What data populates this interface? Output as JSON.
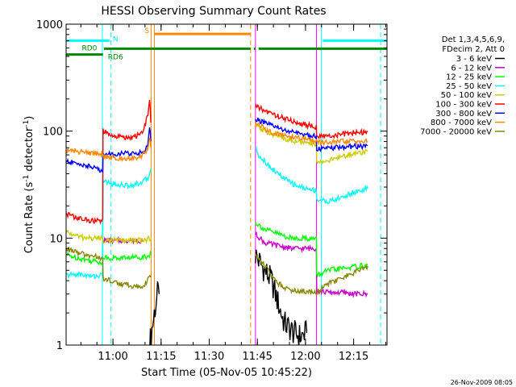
{
  "chart_data": {
    "type": "line",
    "title": "HESSI Observing Summary Count Rates",
    "xlabel": "Start Time (05-Nov-05 10:45:22)",
    "ylabel_main": "Count Rate (s",
    "ylabel_sup1": "-1",
    "ylabel_mid": " detector",
    "ylabel_sup2": "-1",
    "ylabel_end": ")",
    "ylabel": "Count Rate (s-1 detector-1)",
    "x_unit": "minutes since 10:45:22",
    "xlim": [
      0,
      100
    ],
    "ylim": [
      1,
      1000
    ],
    "yscale": "log",
    "xticks": [
      {
        "value": 14.6,
        "label": "11:00"
      },
      {
        "value": 29.6,
        "label": "11:15"
      },
      {
        "value": 44.6,
        "label": "11:30"
      },
      {
        "value": 59.6,
        "label": "11:45"
      },
      {
        "value": 74.6,
        "label": "12:00"
      },
      {
        "value": 89.6,
        "label": "12:15"
      }
    ],
    "yticks": [
      {
        "value": 1,
        "label": "1"
      },
      {
        "value": 10,
        "label": "10"
      },
      {
        "value": 100,
        "label": "100"
      },
      {
        "value": 1000,
        "label": "1000"
      }
    ],
    "legend_header": [
      "Det 1,3,4,5,6,9,",
      "FDecim 2, Att 0"
    ],
    "legend_position": "right",
    "series": [
      {
        "name": "3 - 6 keV",
        "color": "#000000",
        "segments": [
          [
            [
              26.0,
              1
            ],
            [
              27.5,
              2
            ],
            [
              28.5,
              3
            ],
            [
              29.0,
              3
            ]
          ],
          [
            [
              59.0,
              7
            ],
            [
              61,
              5.5
            ],
            [
              64,
              4
            ],
            [
              66,
              2.5
            ],
            [
              68,
              1.6
            ],
            [
              71,
              1.3
            ],
            [
              73,
              1.2
            ],
            [
              75,
              1.3
            ]
          ]
        ]
      },
      {
        "name": "6 - 12 keV",
        "color": "#cc00cc",
        "segments": [
          [
            [
              11.5,
              9.5
            ],
            [
              14,
              9.5
            ],
            [
              17,
              9.5
            ],
            [
              19,
              9.5
            ],
            [
              22,
              9.5
            ],
            [
              24,
              9.5
            ]
          ],
          [
            [
              59.0,
              11
            ],
            [
              62,
              9
            ],
            [
              66,
              8.5
            ],
            [
              70,
              8
            ],
            [
              75,
              8
            ],
            [
              78,
              8
            ],
            [
              78.1,
              3.2
            ],
            [
              82,
              3.1
            ],
            [
              86,
              3.1
            ],
            [
              90,
              3.0
            ],
            [
              94,
              3.0
            ]
          ]
        ]
      },
      {
        "name": "12 - 25 keV",
        "color": "#00ff00",
        "segments": [
          [
            [
              0,
              7
            ],
            [
              4,
              6.5
            ],
            [
              7,
              6.2
            ],
            [
              10,
              6
            ],
            [
              11.4,
              6
            ],
            [
              11.5,
              6.6
            ],
            [
              16,
              6.5
            ],
            [
              20,
              6.6
            ],
            [
              24,
              6.7
            ],
            [
              25.5,
              6.8
            ],
            [
              26.5,
              7.2
            ]
          ],
          [
            [
              59.0,
              14
            ],
            [
              62,
              12
            ],
            [
              66,
              11
            ],
            [
              70,
              10
            ],
            [
              74,
              10
            ],
            [
              78,
              9.8
            ],
            [
              78.1,
              4.5
            ],
            [
              82,
              5
            ],
            [
              86,
              5.2
            ],
            [
              90,
              5.4
            ],
            [
              94,
              5.6
            ]
          ]
        ]
      },
      {
        "name": "25 - 50 keV",
        "color": "#00ffff",
        "segments": [
          [
            [
              0,
              4.5
            ],
            [
              4,
              4.6
            ],
            [
              8,
              4.4
            ],
            [
              11.4,
              4.5
            ],
            [
              11.5,
              34
            ],
            [
              15,
              32
            ],
            [
              19,
              31
            ],
            [
              22,
              32
            ],
            [
              24,
              34
            ],
            [
              25.5,
              36
            ],
            [
              26.5,
              45
            ]
          ],
          [
            [
              59.0,
              70
            ],
            [
              60,
              60
            ],
            [
              62,
              52
            ],
            [
              64,
              45
            ],
            [
              66,
              40
            ],
            [
              68,
              36
            ],
            [
              70,
              33
            ],
            [
              72,
              31
            ],
            [
              74,
              29.5
            ],
            [
              76,
              28.5
            ],
            [
              78,
              28
            ],
            [
              78.1,
              23
            ],
            [
              82,
              22
            ],
            [
              86,
              24
            ],
            [
              90,
              27
            ],
            [
              94,
              29
            ]
          ]
        ]
      },
      {
        "name": "50 - 100 keV",
        "color": "#cccc00",
        "segments": [
          [
            [
              0,
              11.5
            ],
            [
              3,
              10.5
            ],
            [
              6,
              10
            ],
            [
              9,
              10
            ],
            [
              11.4,
              10
            ],
            [
              11.5,
              9.5
            ],
            [
              16,
              9.5
            ],
            [
              20,
              9.5
            ],
            [
              24,
              9.5
            ],
            [
              26.5,
              10
            ]
          ],
          [
            [
              59.0,
              112
            ],
            [
              62,
              100
            ],
            [
              64,
              95
            ],
            [
              66,
              90
            ],
            [
              68,
              86
            ],
            [
              70,
              83
            ],
            [
              72,
              80
            ],
            [
              74,
              78
            ],
            [
              76,
              76
            ],
            [
              78,
              75
            ],
            [
              78.1,
              52
            ],
            [
              82,
              53
            ],
            [
              86,
              58
            ],
            [
              90,
              62
            ],
            [
              94,
              65
            ]
          ]
        ]
      },
      {
        "name": "100 - 300 keV",
        "color": "#ff0000",
        "segments": [
          [
            [
              0,
              17
            ],
            [
              3,
              15.5
            ],
            [
              6,
              14.8
            ],
            [
              9,
              14.5
            ],
            [
              11.4,
              14.5
            ],
            [
              11.5,
              100
            ],
            [
              14,
              90
            ],
            [
              17,
              88
            ],
            [
              20,
              88
            ],
            [
              22,
              90
            ],
            [
              24,
              100
            ],
            [
              25.5,
              140
            ],
            [
              26.0,
              205
            ],
            [
              26.4,
              120
            ]
          ],
          [
            [
              59.0,
              170
            ],
            [
              61,
              160
            ],
            [
              63,
              150
            ],
            [
              65,
              142
            ],
            [
              67,
              135
            ],
            [
              69,
              128
            ],
            [
              71,
              123
            ],
            [
              73,
              118
            ],
            [
              75,
              114
            ],
            [
              78,
              110
            ],
            [
              78.1,
              88
            ],
            [
              82,
              90
            ],
            [
              86,
              93
            ],
            [
              90,
              97
            ],
            [
              94,
              98
            ]
          ]
        ]
      },
      {
        "name": "300 - 800 keV",
        "color": "#0000ff",
        "segments": [
          [
            [
              0,
              52
            ],
            [
              3,
              50
            ],
            [
              6,
              48
            ],
            [
              9,
              45
            ],
            [
              11.4,
              43
            ],
            [
              11.5,
              62
            ],
            [
              15,
              61
            ],
            [
              19,
              62
            ],
            [
              22,
              62
            ],
            [
              24,
              64
            ],
            [
              25.5,
              75
            ],
            [
              26.0,
              110
            ],
            [
              26.4,
              80
            ]
          ],
          [
            [
              59.0,
              130
            ],
            [
              61,
              122
            ],
            [
              63,
              115
            ],
            [
              65,
              110
            ],
            [
              67,
              105
            ],
            [
              69,
              100
            ],
            [
              71,
              97
            ],
            [
              73,
              94
            ],
            [
              75,
              92
            ],
            [
              78,
              90
            ],
            [
              78.1,
              68
            ],
            [
              82,
              69
            ],
            [
              86,
              71
            ],
            [
              90,
              72
            ],
            [
              94,
              73
            ]
          ]
        ]
      },
      {
        "name": "800 - 7000 keV",
        "color": "#ff8800",
        "segments": [
          [
            [
              0,
              66
            ],
            [
              3,
              65
            ],
            [
              6,
              63
            ],
            [
              9,
              62
            ],
            [
              11.4,
              62
            ],
            [
              11.5,
              58
            ],
            [
              15,
              56
            ],
            [
              19,
              56
            ],
            [
              22,
              57
            ],
            [
              24,
              60
            ],
            [
              25.5,
              68
            ],
            [
              26.0,
              90
            ],
            [
              26.4,
              70
            ]
          ],
          [
            [
              59.0,
              120
            ],
            [
              61,
              110
            ],
            [
              63,
              100
            ],
            [
              65,
              96
            ],
            [
              67,
              92
            ],
            [
              69,
              90
            ],
            [
              71,
              88
            ],
            [
              73,
              86
            ],
            [
              75,
              84
            ],
            [
              78,
              82
            ],
            [
              78.1,
              78
            ],
            [
              82,
              78
            ],
            [
              86,
              80
            ],
            [
              90,
              80
            ],
            [
              94,
              80
            ]
          ]
        ]
      },
      {
        "name": "7000 - 20000 keV",
        "color": "#888800",
        "segments": [
          [
            [
              0,
              8
            ],
            [
              4,
              7.2
            ],
            [
              8,
              6.8
            ],
            [
              11.4,
              6.5
            ],
            [
              11.5,
              4.2
            ],
            [
              16,
              3.8
            ],
            [
              20,
              3.6
            ],
            [
              24,
              3.5
            ],
            [
              26.5,
              4.5
            ]
          ],
          [
            [
              59.0,
              7
            ],
            [
              62,
              5.5
            ],
            [
              64,
              4.5
            ],
            [
              66,
              3.8
            ],
            [
              68,
              3.5
            ],
            [
              70,
              3.3
            ],
            [
              74,
              3.2
            ],
            [
              78,
              3.1
            ],
            [
              82,
              3.8
            ],
            [
              86,
              4.2
            ],
            [
              90,
              4.8
            ],
            [
              94,
              5.5
            ]
          ]
        ]
      }
    ],
    "flags": [
      {
        "label": "N",
        "color": "#00ffff",
        "level": 700,
        "segments": [
          [
            0,
            13.5
          ],
          [
            80,
            100
          ]
        ]
      },
      {
        "label": "S",
        "color": "#ff8800",
        "level": 810,
        "segments": [
          [
            27.5,
            57.5
          ]
        ]
      },
      {
        "label": "RD0",
        "color": "#008800",
        "level": 590,
        "segments": [
          [
            11.8,
            57.5
          ],
          [
            58.5,
            59.0
          ],
          [
            60.0,
            100
          ]
        ]
      },
      {
        "label": "RD6",
        "color": "#008800",
        "level": 520,
        "segments": [
          [
            0,
            11.5
          ]
        ]
      }
    ],
    "vlines": [
      {
        "x": 11.3,
        "color": "#00ffff",
        "style": "solid"
      },
      {
        "x": 14.0,
        "color": "#00ffff",
        "style": "dashed"
      },
      {
        "x": 26.5,
        "color": "#ff8800",
        "style": "solid"
      },
      {
        "x": 27.5,
        "color": "#ff8800",
        "style": "solid"
      },
      {
        "x": 57.5,
        "color": "#ff8800",
        "style": "dashed"
      },
      {
        "x": 59.0,
        "color": "#ff00ff",
        "style": "solid"
      },
      {
        "x": 79.5,
        "color": "#00ffff",
        "style": "solid"
      },
      {
        "x": 78.0,
        "color": "#ff00ff",
        "style": "solid"
      },
      {
        "x": 98.0,
        "color": "#00ffff",
        "style": "dashed"
      }
    ]
  },
  "footer": {
    "timestamp": "26-Nov-2009 08:05"
  }
}
